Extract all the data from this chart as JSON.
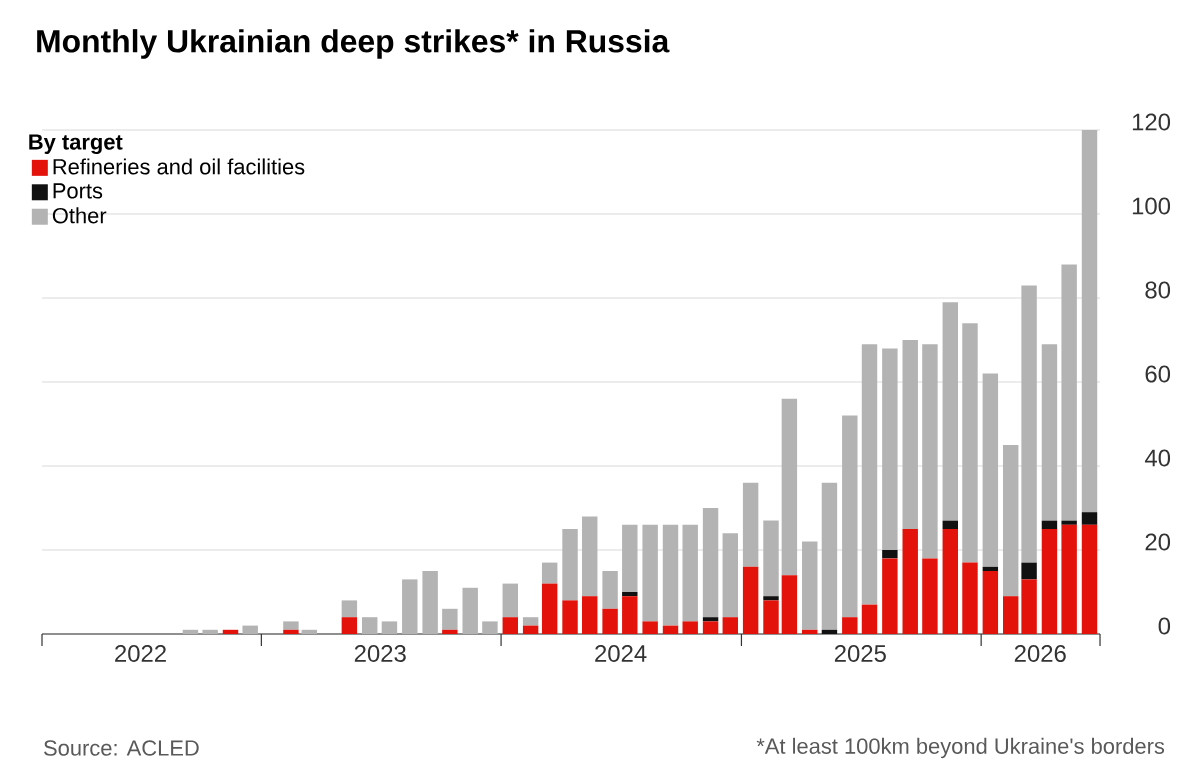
{
  "chart_data": {
    "type": "bar",
    "stacked": true,
    "title": "Monthly Ukrainian deep strikes* in Russia",
    "legend_title": "By target",
    "legend": "top left",
    "grid": "y",
    "x": [
      "2022-02-15",
      "2022-03-15",
      "2022-04-15",
      "2022-05-15",
      "2022-06-15",
      "2022-07-15",
      "2022-08-15",
      "2022-09-15",
      "2022-10-15",
      "2022-11-15",
      "2022-12-15",
      "2023-01-15",
      "2023-02-15",
      "2023-03-15",
      "2023-04-15",
      "2023-05-15",
      "2023-06-15",
      "2023-07-15",
      "2023-08-15",
      "2023-09-15",
      "2023-10-15",
      "2023-11-15",
      "2023-12-15",
      "2024-01-15",
      "2024-02-15",
      "2024-03-15",
      "2024-04-15",
      "2024-05-15",
      "2024-06-15",
      "2024-07-15",
      "2024-08-15",
      "2024-09-15",
      "2024-10-15",
      "2024-11-15",
      "2024-12-15",
      "2025-01-15",
      "2025-02-15",
      "2025-03-15",
      "2025-04-15",
      "2025-05-15",
      "2025-06-15",
      "2025-07-15",
      "2025-08-15",
      "2025-09-15",
      "2025-10-15",
      "2025-11-15",
      "2025-12-15",
      "2026-01-15",
      "2026-02-15",
      "2026-03-15",
      "2026-04-15",
      "2026-05-15",
      "2026-06-15"
    ],
    "series": [
      {
        "name": "Refineries and oil facilities",
        "color": "#e3120b",
        "values": [
          0,
          0,
          0,
          0,
          0,
          0,
          0,
          0,
          0,
          1,
          0,
          0,
          1,
          0,
          0,
          4,
          0,
          0,
          0,
          0,
          1,
          0,
          0,
          4,
          2,
          12,
          8,
          9,
          6,
          9,
          3,
          2,
          3,
          3,
          4,
          16,
          8,
          14,
          1,
          0,
          4,
          7,
          18,
          25,
          18,
          25,
          17,
          15,
          9,
          13,
          25,
          26,
          26
        ]
      },
      {
        "name": "Ports",
        "color": "#111111",
        "values": [
          0,
          0,
          0,
          0,
          0,
          0,
          0,
          0,
          0,
          0,
          0,
          0,
          0,
          0,
          0,
          0,
          0,
          0,
          0,
          0,
          0,
          0,
          0,
          0,
          0,
          0,
          0,
          0,
          0,
          1,
          0,
          0,
          0,
          1,
          0,
          0,
          1,
          0,
          0,
          1,
          0,
          0,
          2,
          0,
          0,
          2,
          0,
          1,
          0,
          4,
          2,
          1,
          3
        ]
      },
      {
        "name": "Other",
        "color": "#b3b3b3",
        "values": [
          0,
          0,
          0,
          0,
          0,
          0,
          0,
          1,
          1,
          0,
          2,
          0,
          2,
          1,
          0,
          4,
          4,
          3,
          13,
          15,
          5,
          11,
          3,
          8,
          2,
          5,
          17,
          19,
          9,
          16,
          23,
          24,
          23,
          26,
          20,
          20,
          18,
          42,
          21,
          35,
          48,
          62,
          48,
          45,
          51,
          52,
          57,
          46,
          36,
          66,
          42,
          61,
          91
        ]
      }
    ],
    "xlim": [
      "2022-02-01",
      "2026-07-01"
    ],
    "xticks": [
      {
        "value": "2022-02-01",
        "label": null
      },
      {
        "value": "2022-07-01",
        "label": "2022"
      },
      {
        "value": "2023-01-01",
        "label": null
      },
      {
        "value": "2023-07-01",
        "label": "2023"
      },
      {
        "value": "2024-01-01",
        "label": null
      },
      {
        "value": "2024-07-01",
        "label": "2024"
      },
      {
        "value": "2025-01-01",
        "label": null
      },
      {
        "value": "2025-07-01",
        "label": "2025"
      },
      {
        "value": "2026-01-01",
        "label": null
      },
      {
        "value": "2026-04-01",
        "label": "2026"
      },
      {
        "value": "2026-07-01",
        "label": null
      }
    ],
    "ylim": [
      0,
      120
    ],
    "yticks": [
      0,
      20,
      40,
      60,
      80,
      100,
      120
    ],
    "annotations": [
      "Source: ACLED",
      "*At least 100km beyond Ukraine's borders"
    ]
  }
}
